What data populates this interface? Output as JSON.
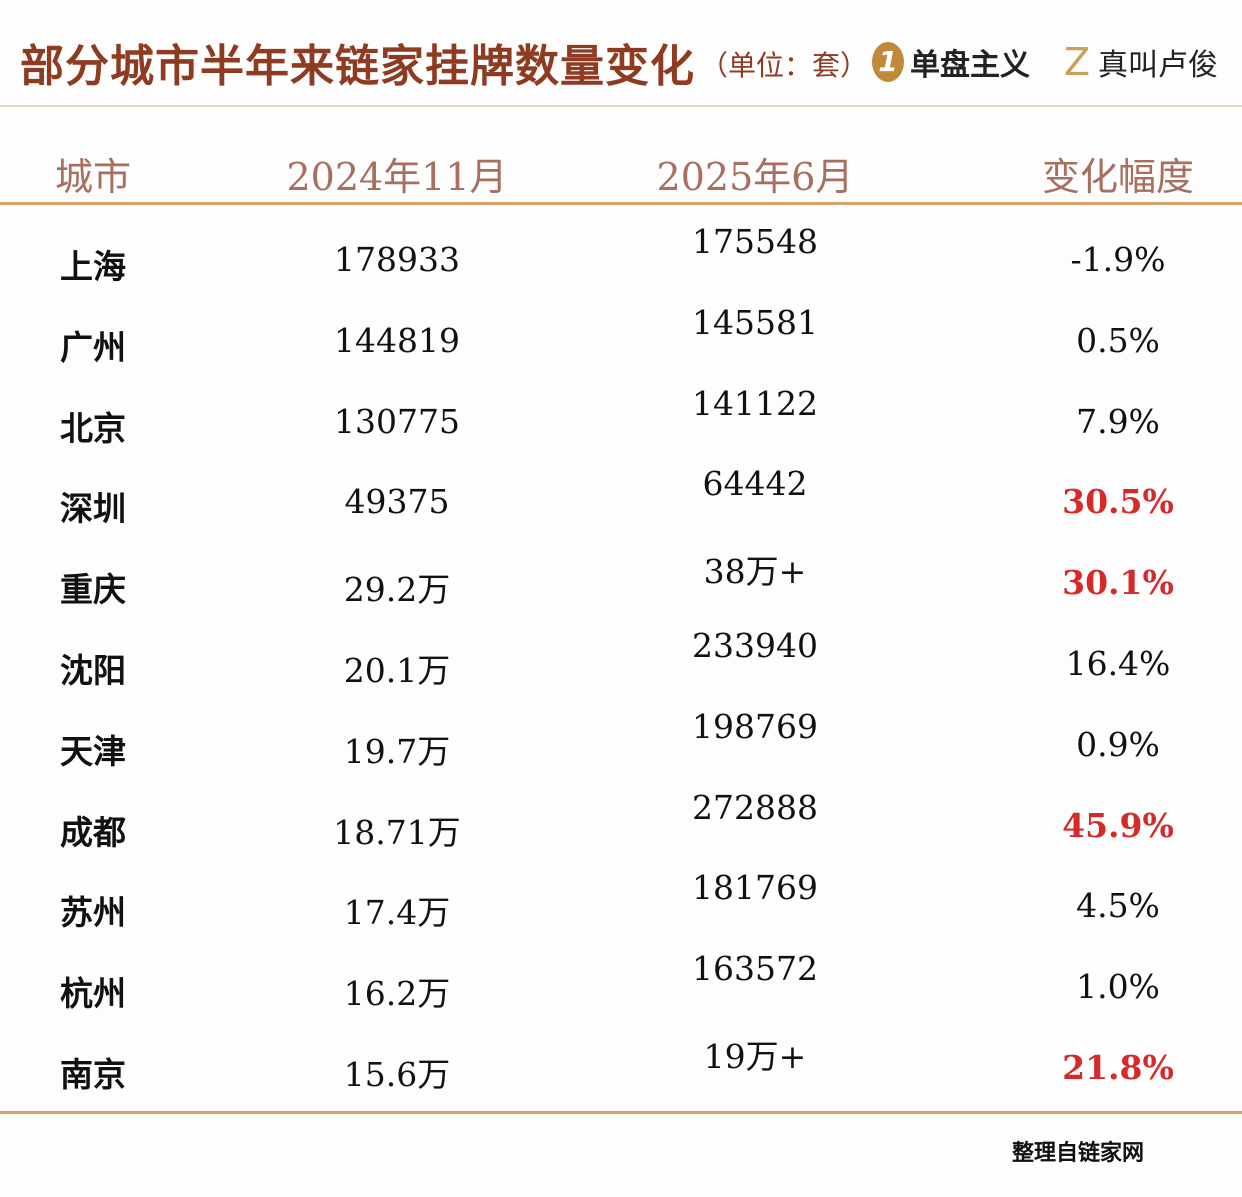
{
  "title": "部分城市半年来链家挂牌数量变化",
  "unit": "（单位：套）",
  "logos": [
    {
      "mark": "1",
      "text": "单盘主义"
    },
    {
      "mark": "Z",
      "text": "真叫卢俊"
    }
  ],
  "colors": {
    "title": "#8e3b22",
    "header": "#a86e5e",
    "rule": "#dba36a",
    "highlight": "#d42a2a"
  },
  "source": "整理自链家网",
  "chart_data": {
    "type": "table",
    "title": "部分城市半年来链家挂牌数量变化",
    "columns": [
      "城市",
      "2024年11月",
      "2025年6月",
      "变化幅度"
    ],
    "rows": [
      {
        "city": "上海",
        "nov2024": "178933",
        "jun2025": "175548",
        "change": "-1.9%",
        "highlight": false
      },
      {
        "city": "广州",
        "nov2024": "144819",
        "jun2025": "145581",
        "change": "0.5%",
        "highlight": false
      },
      {
        "city": "北京",
        "nov2024": "130775",
        "jun2025": "141122",
        "change": "7.9%",
        "highlight": false
      },
      {
        "city": "深圳",
        "nov2024": "49375",
        "jun2025": "64442",
        "change": "30.5%",
        "highlight": true
      },
      {
        "city": "重庆",
        "nov2024": "29.2万",
        "jun2025": "38万+",
        "change": "30.1%",
        "highlight": true
      },
      {
        "city": "沈阳",
        "nov2024": "20.1万",
        "jun2025": "233940",
        "change": "16.4%",
        "highlight": false
      },
      {
        "city": "天津",
        "nov2024": "19.7万",
        "jun2025": "198769",
        "change": "0.9%",
        "highlight": false
      },
      {
        "city": "成都",
        "nov2024": "18.71万",
        "jun2025": "272888",
        "change": "45.9%",
        "highlight": true
      },
      {
        "city": "苏州",
        "nov2024": "17.4万",
        "jun2025": "181769",
        "change": "4.5%",
        "highlight": false
      },
      {
        "city": "杭州",
        "nov2024": "16.2万",
        "jun2025": "163572",
        "change": "1.0%",
        "highlight": false
      },
      {
        "city": "南京",
        "nov2024": "15.6万",
        "jun2025": "19万+",
        "change": "21.8%",
        "highlight": true
      }
    ]
  }
}
